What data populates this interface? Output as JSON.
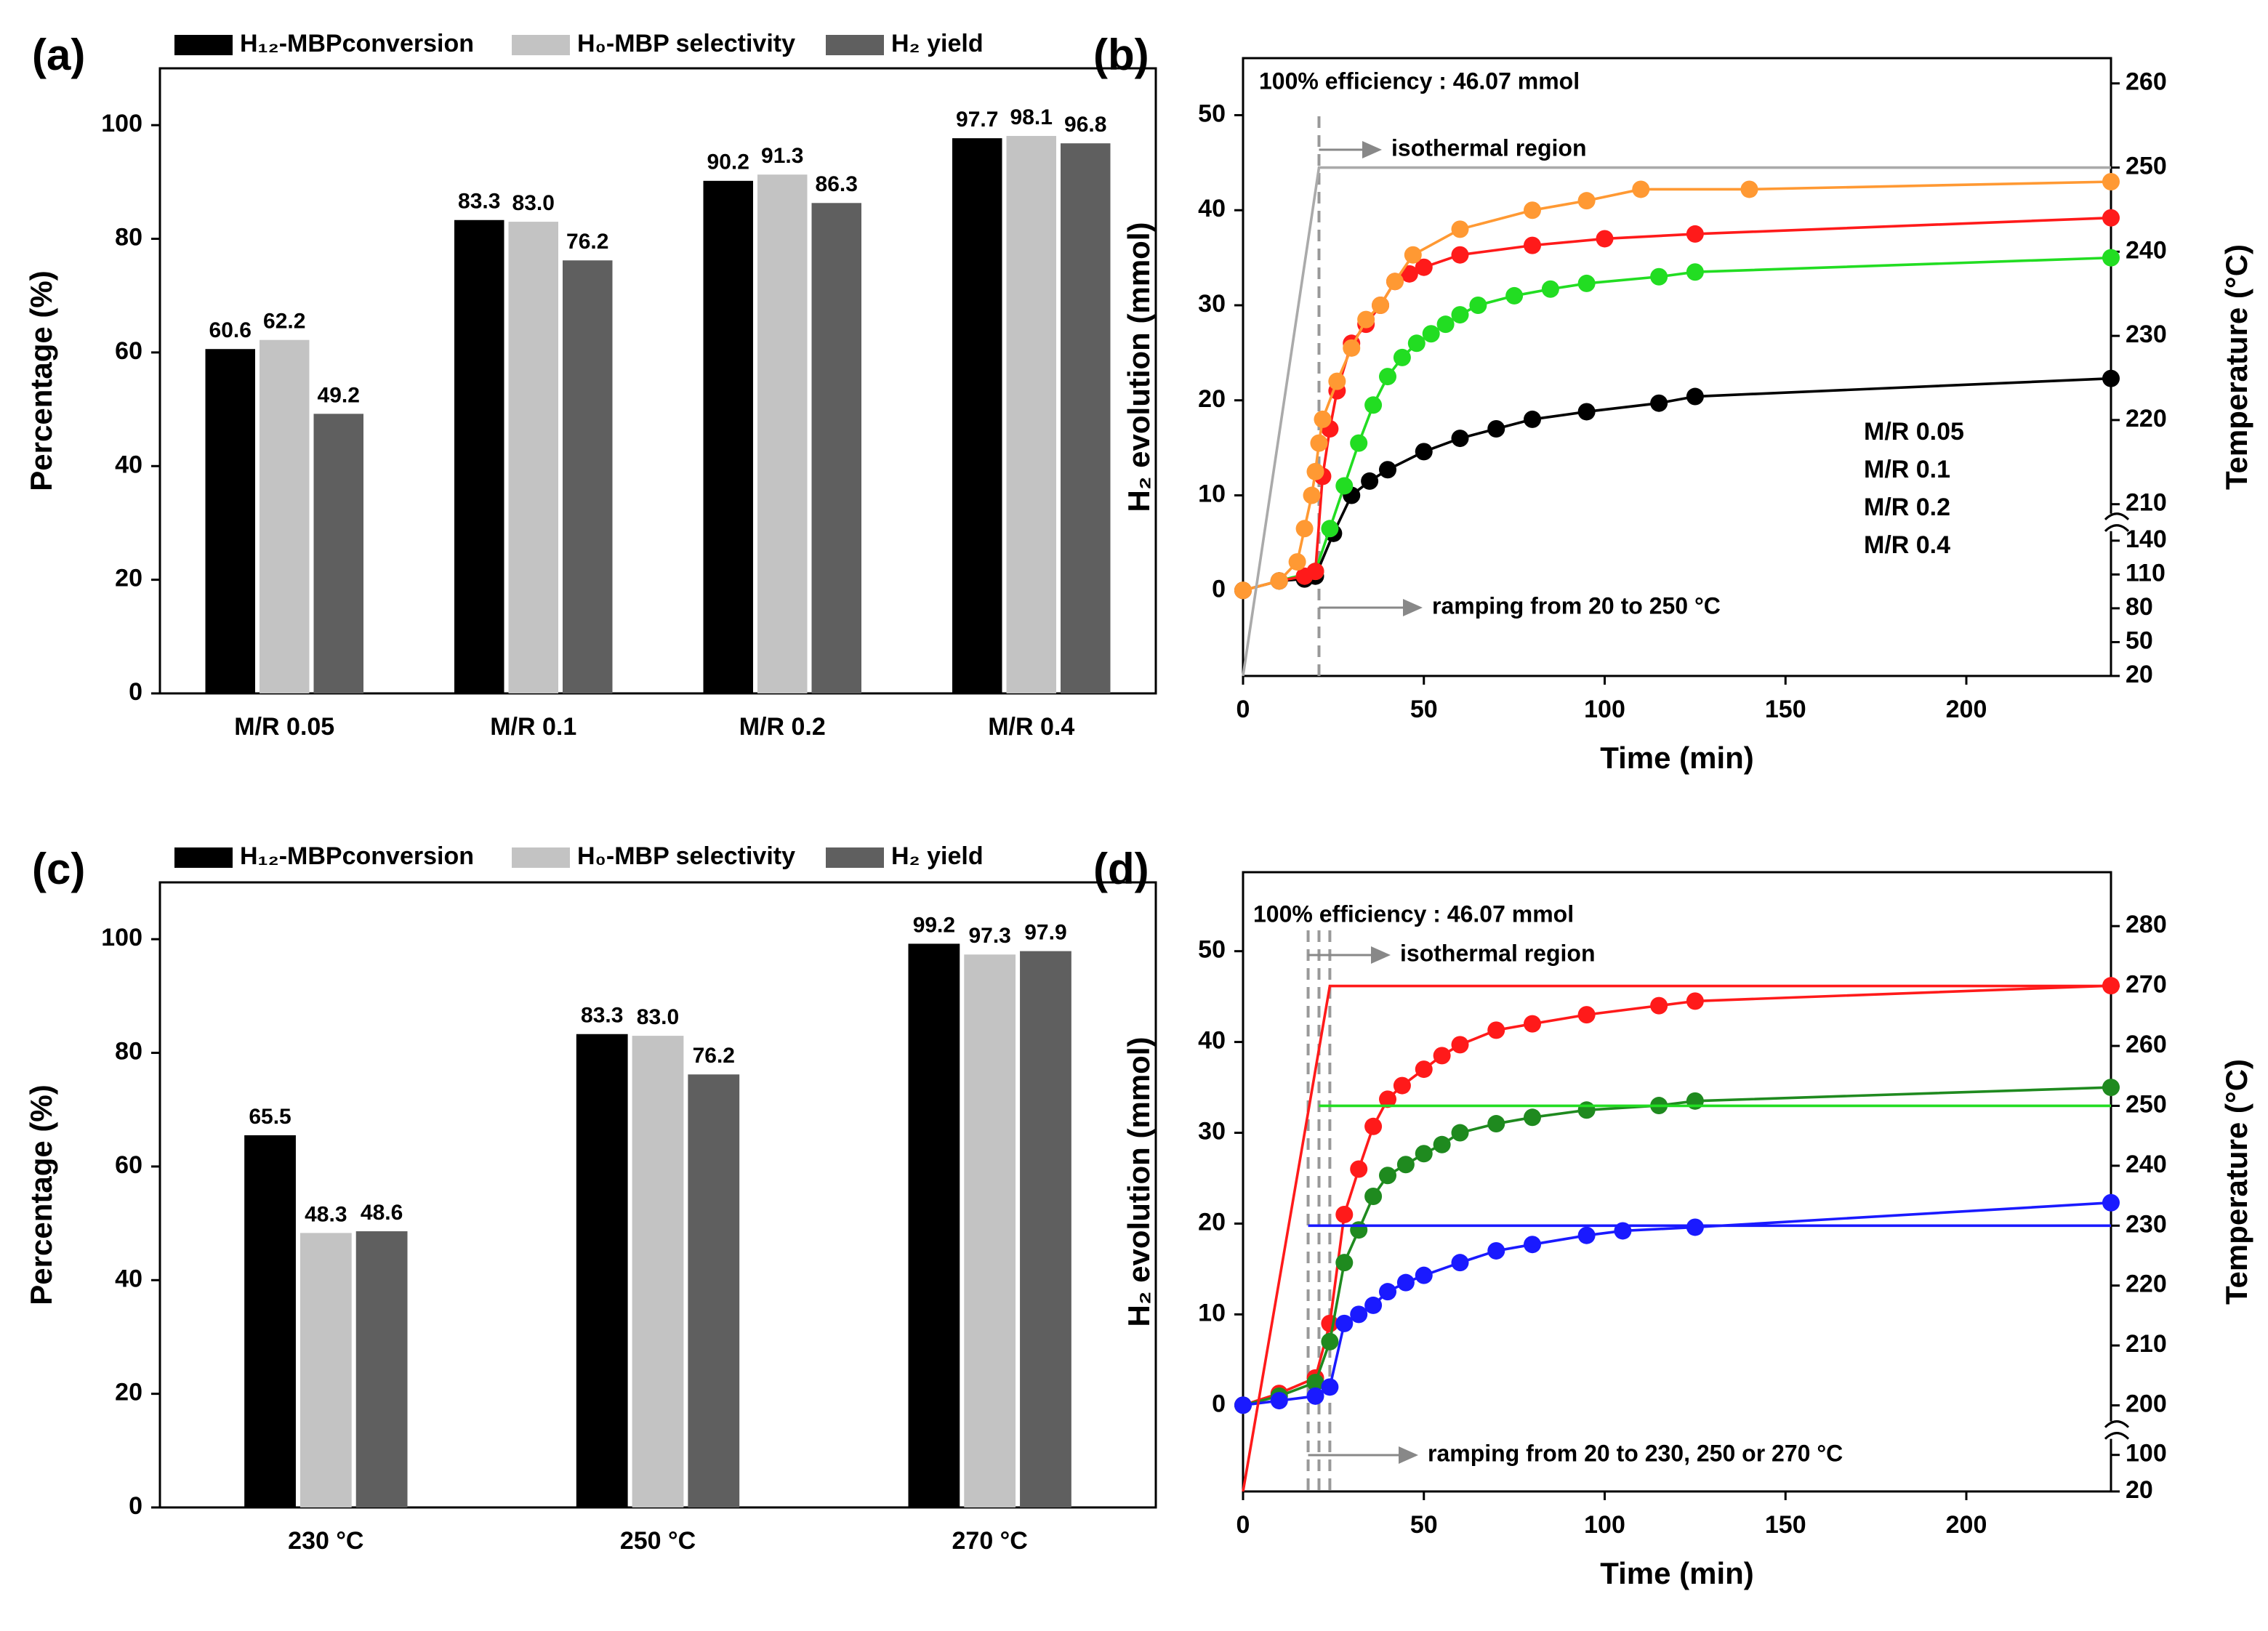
{
  "chart_data": [
    {
      "type": "bar",
      "panel": "(a)",
      "ylabel": "Percentage (%)",
      "categories": [
        "M/R 0.05",
        "M/R 0.1",
        "M/R 0.2",
        "M/R 0.4"
      ],
      "series": [
        {
          "name": "H₁₂-MBPconversion",
          "color": "#000000",
          "values": [
            60.6,
            83.3,
            90.2,
            97.7
          ]
        },
        {
          "name": "H₀-MBP selectivity",
          "color": "#c3c3c3",
          "values": [
            62.2,
            83.0,
            91.3,
            98.1
          ],
          "value_labels": [
            "62.2",
            "83.0",
            "91.3",
            "98.1"
          ]
        },
        {
          "name": "H₂ yield",
          "color": "#5f5f5f",
          "values": [
            49.2,
            76.2,
            86.3,
            96.8
          ]
        }
      ],
      "ylim": [
        0,
        110
      ],
      "yticks": [
        0,
        20,
        40,
        60,
        80,
        100
      ]
    },
    {
      "type": "line",
      "panel": "(b)",
      "xlabel": "Time (min)",
      "ylabel": "H₂ evolution (mmol)",
      "y2label": "Temperature (°C)",
      "xlim": [
        0,
        240
      ],
      "xticks": [
        0,
        50,
        100,
        150,
        200
      ],
      "ylim": [
        -9,
        56
      ],
      "yticks": [
        0,
        10,
        20,
        30,
        40,
        50
      ],
      "y2lim": [
        20,
        263
      ],
      "y2break": [
        140,
        210
      ],
      "y2ticks": [
        20,
        50,
        80,
        110,
        140,
        210,
        220,
        230,
        240,
        250,
        260
      ],
      "vlines": [
        21
      ],
      "annotations": [
        "100% efficiency : 46.07 mmol",
        "isothermal region",
        "ramping from 20 to 250 °C"
      ],
      "series": [
        {
          "name": "M/R 0.05",
          "color": "#000000",
          "x": [
            0,
            10,
            17,
            20,
            25,
            30,
            35,
            40,
            50,
            60,
            70,
            80,
            95,
            115,
            125,
            240
          ],
          "values": [
            0,
            1,
            1.2,
            1.5,
            6,
            10,
            11.5,
            12.7,
            14.6,
            16,
            17,
            18,
            18.8,
            19.7,
            20.4,
            22.3
          ]
        },
        {
          "name": "M/R 0.1",
          "color": "#22dd22",
          "x": [
            0,
            10,
            20,
            24,
            28,
            32,
            36,
            40,
            44,
            48,
            52,
            56,
            60,
            65,
            75,
            85,
            95,
            115,
            125,
            240
          ],
          "values": [
            0,
            1,
            2,
            6.5,
            11,
            15.5,
            19.5,
            22.5,
            24.5,
            26,
            27,
            28,
            29,
            30,
            31,
            31.7,
            32.3,
            33,
            33.5,
            35
          ]
        },
        {
          "name": "M/R 0.2",
          "color": "#ff1a1a",
          "x": [
            0,
            10,
            17,
            20,
            22,
            24,
            26,
            30,
            34,
            38,
            42,
            46,
            50,
            60,
            80,
            100,
            125,
            240
          ],
          "values": [
            0,
            1,
            1.5,
            2,
            12,
            17,
            21,
            26,
            28,
            30,
            32.5,
            33.3,
            34,
            35.3,
            36.3,
            37,
            37.5,
            39.2
          ]
        },
        {
          "name": "M/R 0.4",
          "color": "#ff9933",
          "x": [
            0,
            10,
            15,
            17,
            19,
            20,
            21,
            22,
            26,
            30,
            34,
            38,
            42,
            47,
            60,
            80,
            95,
            110,
            140,
            240
          ],
          "values": [
            0,
            1,
            3,
            6.5,
            10,
            12.5,
            15.5,
            18,
            22,
            25.5,
            28.5,
            30,
            32.5,
            35.3,
            38,
            40,
            41,
            42.2,
            42.2,
            43
          ]
        },
        {
          "color": "#aaaaaa",
          "axis": "y2",
          "x": [
            0,
            21,
            240
          ],
          "values": [
            20,
            250,
            250
          ]
        }
      ]
    },
    {
      "type": "bar",
      "panel": "(c)",
      "ylabel": "Percentage (%)",
      "categories": [
        "230 °C",
        "250 °C",
        "270 °C"
      ],
      "series": [
        {
          "name": "H₁₂-MBPconversion",
          "color": "#000000",
          "values": [
            65.5,
            83.3,
            99.2
          ]
        },
        {
          "name": "H₀-MBP selectivity",
          "color": "#c3c3c3",
          "values": [
            48.3,
            83.0,
            97.3
          ],
          "value_labels": [
            "48.3",
            "83.0",
            "97.3"
          ]
        },
        {
          "name": "H₂ yield",
          "color": "#5f5f5f",
          "values": [
            48.6,
            76.2,
            97.9
          ]
        }
      ],
      "ylim": [
        0,
        110
      ],
      "yticks": [
        0,
        20,
        40,
        60,
        80,
        100
      ]
    },
    {
      "type": "line",
      "panel": "(d)",
      "xlabel": "Time (min)",
      "ylabel": "H₂ evolution (mmol)",
      "y2label": "Temperature (°C)",
      "xlim": [
        0,
        240
      ],
      "xticks": [
        0,
        50,
        100,
        150,
        200
      ],
      "ylim": [
        -9.5,
        58.7
      ],
      "yticks": [
        0,
        10,
        20,
        30,
        40,
        50
      ],
      "y2lim": [
        20,
        289
      ],
      "y2break": [
        100,
        200
      ],
      "y2ticks": [
        20,
        100,
        200,
        210,
        220,
        230,
        240,
        250,
        260,
        270,
        280
      ],
      "vlines": [
        18,
        21,
        24
      ],
      "annotations": [
        "100% efficiency : 46.07 mmol",
        "isothermal region",
        "ramping from 20 to 230, 250 or 270 °C"
      ],
      "series": [
        {
          "color": "#ff1a1a",
          "x": [
            0,
            10,
            20,
            24,
            28,
            32,
            36,
            40,
            44,
            50,
            55,
            60,
            70,
            80,
            95,
            115,
            125,
            240
          ],
          "values": [
            0,
            1.3,
            3,
            9,
            21,
            26,
            30.7,
            33.7,
            35.2,
            37,
            38.5,
            39.7,
            41.3,
            42,
            43,
            44,
            44.5,
            46.2
          ]
        },
        {
          "color": "#1f8a1f",
          "x": [
            0,
            10,
            20,
            24,
            28,
            32,
            36,
            40,
            45,
            50,
            55,
            60,
            70,
            80,
            95,
            115,
            125,
            240
          ],
          "values": [
            0,
            1,
            2.5,
            7,
            15.7,
            19.3,
            23,
            25.3,
            26.5,
            27.7,
            28.7,
            30,
            31,
            31.7,
            32.5,
            33,
            33.5,
            35
          ]
        },
        {
          "color": "#1a1aff",
          "x": [
            0,
            10,
            20,
            24,
            28,
            32,
            36,
            40,
            45,
            50,
            60,
            70,
            80,
            95,
            105,
            125,
            240
          ],
          "values": [
            0,
            0.5,
            1,
            2,
            9,
            10,
            11,
            12.5,
            13.5,
            14.3,
            15.7,
            17,
            17.7,
            18.7,
            19.2,
            19.6,
            22.3
          ]
        },
        {
          "color": "#ff1a1a",
          "axis": "y2",
          "x": [
            0,
            24,
            240
          ],
          "values": [
            20,
            270,
            270
          ]
        },
        {
          "color": "#22dd22",
          "axis": "y2",
          "x": [
            21,
            240
          ],
          "values": [
            250,
            250
          ]
        },
        {
          "color": "#1a1aff",
          "axis": "y2",
          "x": [
            18,
            240
          ],
          "values": [
            230,
            230
          ]
        }
      ]
    }
  ]
}
